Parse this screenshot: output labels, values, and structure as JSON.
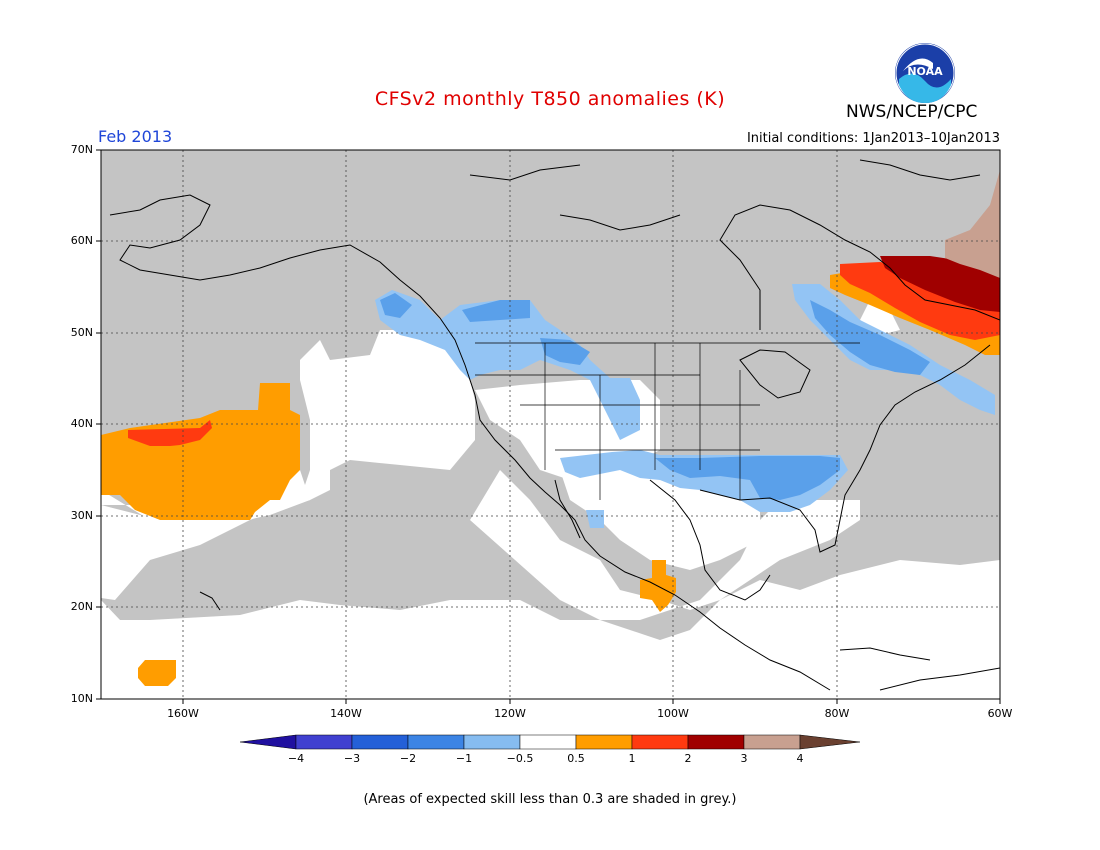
{
  "title": "CFSv2 monthly T850 anomalies (K)",
  "period": "Feb 2013",
  "agency": "NWS/NCEP/CPC",
  "logo_text": "NOAA",
  "initial_conditions": "Initial conditions: 1Jan2013–10Jan2013",
  "footnote": "(Areas of expected skill less than 0.3 are shaded in grey.)",
  "map": {
    "lat_labels": [
      "70N",
      "60N",
      "50N",
      "40N",
      "30N",
      "20N",
      "10N"
    ],
    "lon_labels": [
      "160W",
      "140W",
      "120W",
      "100W",
      "80W",
      "60W"
    ],
    "colors": {
      "low_skill": "#c4c4c4",
      "land_white": "#ffffff",
      "anom_neg_1": "#93c4f4",
      "anom_neg_2": "#5aa0ea",
      "anom_pos_05": "#ff9d00",
      "anom_pos_1": "#ff3a10",
      "anom_pos_2": "#a00000",
      "anom_pos_3": "#c8a090"
    }
  },
  "colorbar": {
    "labels": [
      "−4",
      "−3",
      "−2",
      "−1",
      "−0.5",
      "0.5",
      "1",
      "2",
      "3",
      "4"
    ],
    "colors": [
      "#2010a0",
      "#4040d0",
      "#2460d8",
      "#3c84e4",
      "#86bcf0",
      "#ffffff",
      "#ff9d00",
      "#ff3a10",
      "#a00000",
      "#c8a090",
      "#6a4030"
    ]
  }
}
